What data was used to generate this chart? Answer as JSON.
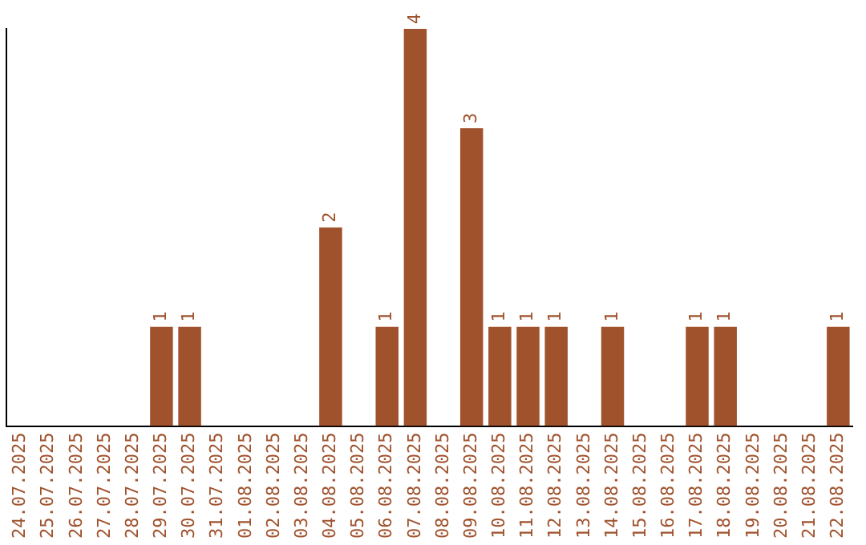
{
  "chart_data": {
    "type": "bar",
    "categories": [
      "24.07.2025",
      "25.07.2025",
      "26.07.2025",
      "27.07.2025",
      "28.07.2025",
      "29.07.2025",
      "30.07.2025",
      "31.07.2025",
      "01.08.2025",
      "02.08.2025",
      "03.08.2025",
      "04.08.2025",
      "05.08.2025",
      "06.08.2025",
      "07.08.2025",
      "08.08.2025",
      "09.08.2025",
      "10.08.2025",
      "11.08.2025",
      "12.08.2025",
      "13.08.2025",
      "14.08.2025",
      "15.08.2025",
      "16.08.2025",
      "17.08.2025",
      "18.08.2025",
      "19.08.2025",
      "20.08.2025",
      "21.08.2025",
      "22.08.2025"
    ],
    "values": [
      0,
      0,
      0,
      0,
      0,
      1,
      1,
      0,
      0,
      0,
      0,
      2,
      0,
      1,
      4,
      0,
      3,
      1,
      1,
      1,
      0,
      1,
      0,
      0,
      1,
      1,
      0,
      0,
      0,
      1
    ],
    "value_labels": [
      null,
      null,
      null,
      null,
      null,
      "1",
      "1",
      null,
      null,
      null,
      null,
      "2",
      null,
      "1",
      "4",
      null,
      "3",
      "1",
      "1",
      "1",
      null,
      "1",
      null,
      null,
      "1",
      "1",
      null,
      null,
      null,
      "1"
    ],
    "color": "#a0522d",
    "grid": false,
    "legend": false
  }
}
